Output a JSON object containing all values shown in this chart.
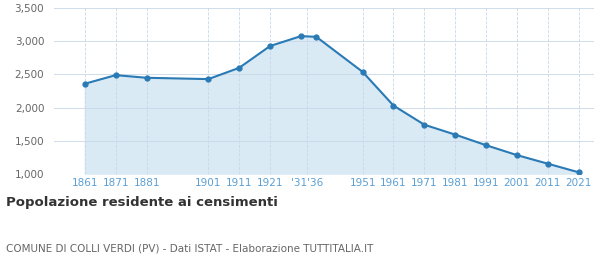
{
  "years": [
    1861,
    1871,
    1881,
    1901,
    1911,
    1921,
    1931,
    1936,
    1951,
    1961,
    1971,
    1981,
    1991,
    2001,
    2011,
    2021
  ],
  "population": [
    2360,
    2490,
    2450,
    2430,
    2600,
    2930,
    3080,
    3070,
    2540,
    2030,
    1740,
    1590,
    1430,
    1280,
    1150,
    1020
  ],
  "line_color": "#2a7ab5",
  "fill_color": "#daeaf5",
  "marker_color": "#2a7ab5",
  "background_color": "#ffffff",
  "grid_color": "#c8d8e8",
  "title": "Popolazione residente ai censimenti",
  "subtitle": "COMUNE DI COLLI VERDI (PV) - Dati ISTAT - Elaborazione TUTTITALIA.IT",
  "ylim": [
    1000,
    3500
  ],
  "yticks": [
    1000,
    1500,
    2000,
    2500,
    3000,
    3500
  ],
  "xtick_positions": [
    1861,
    1871,
    1881,
    1901,
    1911,
    1921,
    1933,
    1951,
    1961,
    1971,
    1981,
    1991,
    2001,
    2011,
    2021
  ],
  "xtick_labels": [
    "1861",
    "1871",
    "1881",
    "1901",
    "1911",
    "1921",
    "'31'36",
    "1951",
    "1961",
    "1971",
    "1981",
    "1991",
    "2001",
    "2011",
    "2021"
  ],
  "xlim": [
    1851,
    2026
  ],
  "tick_color": "#5a9fd4",
  "ytick_color": "#666666"
}
